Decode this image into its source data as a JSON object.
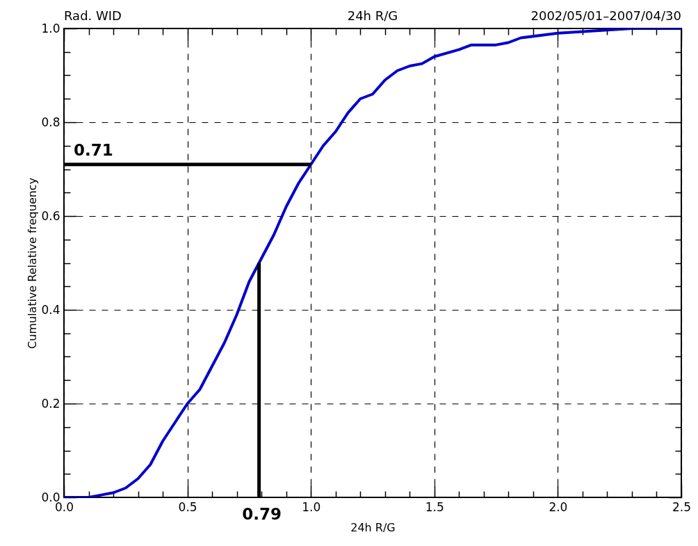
{
  "chart_data": {
    "type": "line",
    "title": "Rad. WID",
    "subtitle": "24h R/G",
    "xlabel": "24h R/G",
    "ylabel": "Cumulative Relative frequency",
    "xlim": [
      0,
      2.5
    ],
    "ylim": [
      0,
      1.0
    ],
    "xticks": [
      {
        "value": 0,
        "label": "0.0"
      },
      {
        "value": 0.1,
        "label": null
      },
      {
        "value": 0.2,
        "label": null
      },
      {
        "value": 0.3,
        "label": null
      },
      {
        "value": 0.4,
        "label": null
      },
      {
        "value": 0.5,
        "label": "0.5"
      },
      {
        "value": 0.6,
        "label": null
      },
      {
        "value": 0.7,
        "label": null
      },
      {
        "value": 0.8,
        "label": null
      },
      {
        "value": 0.9,
        "label": null
      },
      {
        "value": 1.0,
        "label": "1.0"
      },
      {
        "value": 1.1,
        "label": null
      },
      {
        "value": 1.2,
        "label": null
      },
      {
        "value": 1.3,
        "label": null
      },
      {
        "value": 1.4,
        "label": null
      },
      {
        "value": 1.5,
        "label": "1.5"
      },
      {
        "value": 1.6,
        "label": null
      },
      {
        "value": 1.7,
        "label": null
      },
      {
        "value": 1.8,
        "label": null
      },
      {
        "value": 1.9,
        "label": null
      },
      {
        "value": 2.0,
        "label": "2.0"
      },
      {
        "value": 2.1,
        "label": null
      },
      {
        "value": 2.2,
        "label": null
      },
      {
        "value": 2.3,
        "label": null
      },
      {
        "value": 2.4,
        "label": null
      },
      {
        "value": 2.5,
        "label": "2.5"
      }
    ],
    "yticks": [
      {
        "value": 0,
        "label": "0.0"
      },
      {
        "value": 0.05,
        "label": null
      },
      {
        "value": 0.1,
        "label": null
      },
      {
        "value": 0.15,
        "label": null
      },
      {
        "value": 0.2,
        "label": "0.2"
      },
      {
        "value": 0.25,
        "label": null
      },
      {
        "value": 0.3,
        "label": null
      },
      {
        "value": 0.35,
        "label": null
      },
      {
        "value": 0.4,
        "label": "0.4"
      },
      {
        "value": 0.45,
        "label": null
      },
      {
        "value": 0.5,
        "label": null
      },
      {
        "value": 0.55,
        "label": null
      },
      {
        "value": 0.6,
        "label": "0.6"
      },
      {
        "value": 0.65,
        "label": null
      },
      {
        "value": 0.7,
        "label": null
      },
      {
        "value": 0.75,
        "label": null
      },
      {
        "value": 0.8,
        "label": "0.8"
      },
      {
        "value": 0.85,
        "label": null
      },
      {
        "value": 0.9,
        "label": null
      },
      {
        "value": 0.95,
        "label": null
      },
      {
        "value": 1.0,
        "label": "1.0"
      }
    ],
    "grid": true,
    "line_style": "solid",
    "series": [
      {
        "color": "#0000cc",
        "x": [
          0,
          0.1,
          0.15,
          0.2,
          0.25,
          0.3,
          0.35,
          0.4,
          0.45,
          0.5,
          0.55,
          0.6,
          0.65,
          0.7,
          0.75,
          0.79,
          0.85,
          0.9,
          0.95,
          1.0,
          1.05,
          1.1,
          1.15,
          1.2,
          1.25,
          1.3,
          1.35,
          1.4,
          1.45,
          1.5,
          1.6,
          1.65,
          1.75,
          1.8,
          1.85,
          2.0,
          2.3,
          2.5
        ],
        "values": [
          0,
          0,
          0.005,
          0.01,
          0.02,
          0.04,
          0.07,
          0.12,
          0.16,
          0.2,
          0.23,
          0.28,
          0.33,
          0.39,
          0.46,
          0.5,
          0.56,
          0.62,
          0.67,
          0.71,
          0.75,
          0.78,
          0.82,
          0.85,
          0.86,
          0.89,
          0.91,
          0.92,
          0.925,
          0.94,
          0.955,
          0.965,
          0.965,
          0.97,
          0.98,
          0.99,
          1.0,
          1.0
        ]
      },
      {
        "color": "#000000",
        "x": [
          0,
          1.0
        ],
        "values": [
          0.71,
          0.71
        ]
      },
      {
        "color": "#000000",
        "x": [
          0.79,
          0.79
        ],
        "values": [
          0,
          0.5
        ]
      }
    ],
    "annotations": [
      "2002/05/01–2007/04/30",
      {
        "text": "0.71",
        "x": 0,
        "y": 0.71
      },
      {
        "text": "0.79",
        "x": 0.79,
        "y": 0
      }
    ]
  }
}
